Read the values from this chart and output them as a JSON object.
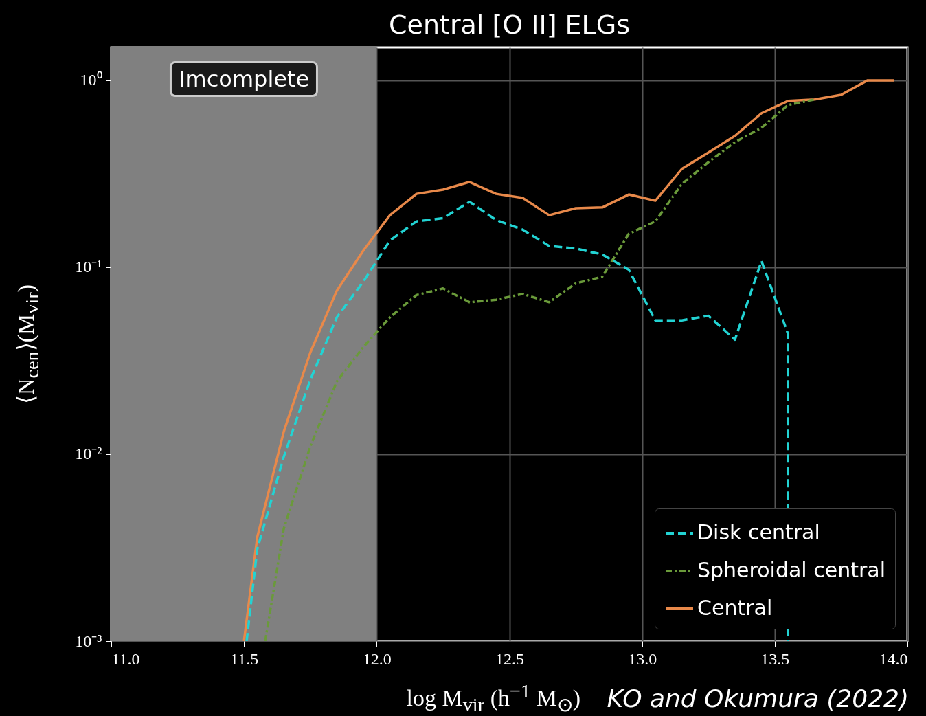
{
  "chart_data": {
    "type": "line",
    "title": "Central [O II] ELGs",
    "xlabel": "log M$_{vir}$ (h$^{−1}$ M$_{⊙}$)",
    "ylabel": "⟨N$_{cen}$⟩(M$_{vir}$)",
    "annotations": [
      "KO and Okumura (2022)"
    ],
    "xlim": [
      11,
      14
    ],
    "ylim": [
      0.001,
      1.5
    ],
    "log": true,
    "grid": true,
    "legend": "bottom right",
    "xticks": [
      {
        "value": 11,
        "label": "11.0"
      },
      {
        "value": 11.5,
        "label": "11.5"
      },
      {
        "value": 12,
        "label": "12.0"
      },
      {
        "value": 12.5,
        "label": "12.5"
      },
      {
        "value": 13,
        "label": "13.0"
      },
      {
        "value": 13.5,
        "label": "13.5"
      },
      {
        "value": 14,
        "label": "14.0"
      }
    ],
    "yticks": [
      {
        "value": 0.001,
        "label": "10⁻³"
      },
      {
        "value": 0.01,
        "label": "10⁻²"
      },
      {
        "value": 0.1,
        "label": "10⁻¹"
      },
      {
        "value": 1,
        "label": "10⁰"
      }
    ],
    "bands": [
      {
        "axis": "x",
        "from": 11,
        "to": 12,
        "label": "Imcomplete",
        "color": "#808080"
      }
    ],
    "series": [
      {
        "name": "Disk central",
        "color": "#22d3d3",
        "line_style": "dashed",
        "x": [
          11.51,
          11.55,
          11.65,
          11.75,
          11.85,
          11.95,
          12.05,
          12.15,
          12.25,
          12.35,
          12.45,
          12.55,
          12.65,
          12.75,
          12.85,
          12.95,
          13.05,
          13.15,
          13.25,
          13.35,
          13.45,
          13.55,
          13.55
        ],
        "values": [
          0.001,
          0.0031,
          0.0097,
          0.025,
          0.054,
          0.084,
          0.139,
          0.176,
          0.183,
          0.224,
          0.179,
          0.159,
          0.13,
          0.126,
          0.117,
          0.097,
          0.052,
          0.052,
          0.055,
          0.041,
          0.108,
          0.044,
          0.001
        ]
      },
      {
        "name": "Spheroidal central",
        "color": "#6a9a3a",
        "line_style": "dashdot",
        "x": [
          11.58,
          11.65,
          11.75,
          11.85,
          11.95,
          12.05,
          12.15,
          12.25,
          12.35,
          12.45,
          12.55,
          12.65,
          12.75,
          12.85,
          12.95,
          13.05,
          13.15,
          13.25,
          13.35,
          13.45,
          13.55,
          13.65
        ],
        "values": [
          0.001,
          0.004,
          0.011,
          0.0245,
          0.0375,
          0.054,
          0.071,
          0.077,
          0.065,
          0.067,
          0.072,
          0.065,
          0.082,
          0.089,
          0.151,
          0.176,
          0.279,
          0.365,
          0.467,
          0.557,
          0.738,
          0.79
        ]
      },
      {
        "name": "Central",
        "color": "#e8894a",
        "line_style": "solid",
        "x": [
          11.5,
          11.55,
          11.65,
          11.75,
          11.85,
          11.95,
          12.05,
          12.15,
          12.25,
          12.35,
          12.45,
          12.55,
          12.65,
          12.75,
          12.85,
          12.95,
          13.05,
          13.15,
          13.25,
          13.35,
          13.45,
          13.55,
          13.65,
          13.75,
          13.85,
          13.95
        ],
        "values": [
          0.001,
          0.0036,
          0.0132,
          0.035,
          0.075,
          0.123,
          0.19,
          0.247,
          0.26,
          0.286,
          0.247,
          0.235,
          0.19,
          0.207,
          0.209,
          0.245,
          0.227,
          0.336,
          0.411,
          0.504,
          0.667,
          0.776,
          0.79,
          0.837,
          1,
          1
        ]
      }
    ]
  }
}
